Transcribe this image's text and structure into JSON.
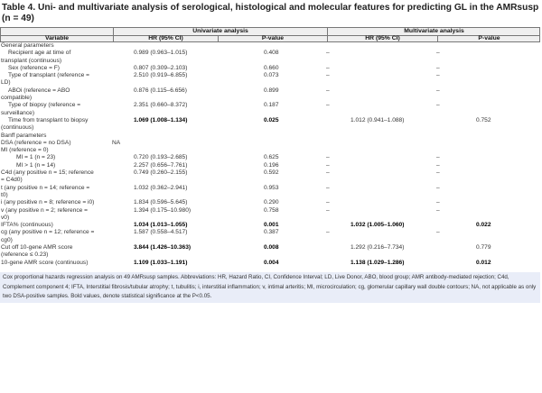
{
  "title": "Table 4. Uni- and multivariate analysis of serological, histological and molecular features for predicting GL in the AMRsusp (n = 49)",
  "header": {
    "univariate": "Univariate analysis",
    "multivariate": "Multivariate analysis",
    "variable": "Variable",
    "hr": "HR (95% CI)",
    "p": "P-value",
    "hr2": "HR (95% CI)",
    "p2": "P-value"
  },
  "rows": [
    {
      "label_lines": [
        "General parameters"
      ],
      "indent": 0
    },
    {
      "label_lines": [
        "Recipient age at time of",
        "transplant (continuous)"
      ],
      "indent": 1,
      "hr": "0.989 (0.963–1.015)",
      "p": "0.408",
      "mhr": "–",
      "mp": "–"
    },
    {
      "label_lines": [
        "Sex (reference = F)"
      ],
      "indent": 1,
      "hr": "0.807 (0.309–2.103)",
      "p": "0.660",
      "mhr": "–",
      "mp": "–"
    },
    {
      "label_lines": [
        "Type of transplant (reference =",
        "LD)"
      ],
      "indent": 1,
      "hr": "2.510 (0.919–6.855)",
      "p": "0.073",
      "mhr": "–",
      "mp": "–"
    },
    {
      "label_lines": [
        "ABOi (reference = ABO",
        "compatible)"
      ],
      "indent": 1,
      "hr": "0.876 (0.115–6.656)",
      "p": "0.899",
      "mhr": "–",
      "mp": "–"
    },
    {
      "label_lines": [
        "Type of biopsy (reference =",
        "surveillance)"
      ],
      "indent": 1,
      "hr": "2.351 (0.660–8.372)",
      "p": "0.187",
      "mhr": "–",
      "mp": "–"
    },
    {
      "label_lines": [
        "Time from transplant to biopsy",
        "(continuous)"
      ],
      "indent": 1,
      "hr": "1.069 (1.008–1.134)",
      "p": "0.025",
      "mhr": "1.012 (0.941–1.088)",
      "mp": "0.752",
      "bold_uni": true
    },
    {
      "label_lines": [
        "Banff parameters"
      ],
      "indent": 0
    },
    {
      "label_lines": [
        "DSA (reference = no DSA)"
      ],
      "indent": 0,
      "na": "NA"
    },
    {
      "label_lines": [
        "MI (reference = 0)"
      ],
      "indent": 0
    },
    {
      "label_lines": [
        "MI = 1 (n = 23)"
      ],
      "indent": 2,
      "hr": "0.720 (0.193–2.685)",
      "p": "0.625",
      "mhr": "–",
      "mp": "–"
    },
    {
      "label_lines": [
        "MI > 1 (n = 14)"
      ],
      "indent": 2,
      "hr": "2.257 (0.656–7.761)",
      "p": "0.196",
      "mhr": "–",
      "mp": "–"
    },
    {
      "label_lines": [
        "C4d (any positive n = 15; reference",
        "= C4d0)"
      ],
      "indent": 0,
      "hr": "0.749 (0.260–2.155)",
      "p": "0.592",
      "mhr": "–",
      "mp": "–"
    },
    {
      "label_lines": [
        "t (any positive n = 14; reference =",
        "t0)"
      ],
      "indent": 0,
      "hr": "1.032 (0.362–2.941)",
      "p": "0.953",
      "mhr": "–",
      "mp": "–"
    },
    {
      "label_lines": [
        "i (any positive n = 8; reference = i0)"
      ],
      "indent": 0,
      "hr": "1.834 (0.596–5.645)",
      "p": "0.290",
      "mhr": "–",
      "mp": "–"
    },
    {
      "label_lines": [
        "v (any positive n = 2; reference =",
        "v0)"
      ],
      "indent": 0,
      "hr": "1.394 (0.175–10.980)",
      "p": "0.758",
      "mhr": "–",
      "mp": "–"
    },
    {
      "label_lines": [
        "IFTA% (continuous)"
      ],
      "indent": 0,
      "hr": "1.034 (1.013–1.055)",
      "p": "0.001",
      "mhr": "1.032 (1.005–1.060)",
      "mp": "0.022",
      "bold_uni": true,
      "bold_multi": true
    },
    {
      "label_lines": [
        "cg (any positive n = 12; reference =",
        "cg0)"
      ],
      "indent": 0,
      "hr": "1.587 (0.558–4.517)",
      "p": "0.387",
      "mhr": "–",
      "mp": "–"
    },
    {
      "label_lines": [
        "Cut off 10-gene AMR score",
        "(reference ≤ 0.23)"
      ],
      "indent": 0,
      "hr": "3.844 (1.426–10.363)",
      "p": "0.008",
      "mhr": "1.292 (0.216–7.734)",
      "mp": "0.779",
      "bold_uni": true
    },
    {
      "label_lines": [
        "10-gene AMR score (continuous)"
      ],
      "indent": 0,
      "hr": "1.109 (1.033–1.191)",
      "p": "0.004",
      "mhr": "1.138 (1.029–1.286)",
      "mp": "0.012",
      "bold_uni": true,
      "bold_multi": true
    }
  ],
  "footnote": "Cox proportional hazards regression analysis on 49 AMRsusp samples. Abbreviations: HR, Hazard Ratio, CI, Confidence Interval; LD, Live Donor, ABO, blood group; AMR antibody-mediated rejection; C4d, Complement component 4; IFTA, Interstitial fibrosis/tubular atrophy; t, tubulitis; i, interstitial inflammation; v, intimal arteritis; MI, microcirculation; cg, glomerular capillary wall double contours; NA, not applicable as only two DSA-positive samples. Bold values, denote statistical significance at the P<0.05.",
  "colors": {
    "header_bg": "#efefef",
    "footnote_bg": "#e9edf8",
    "border": "#777777"
  }
}
